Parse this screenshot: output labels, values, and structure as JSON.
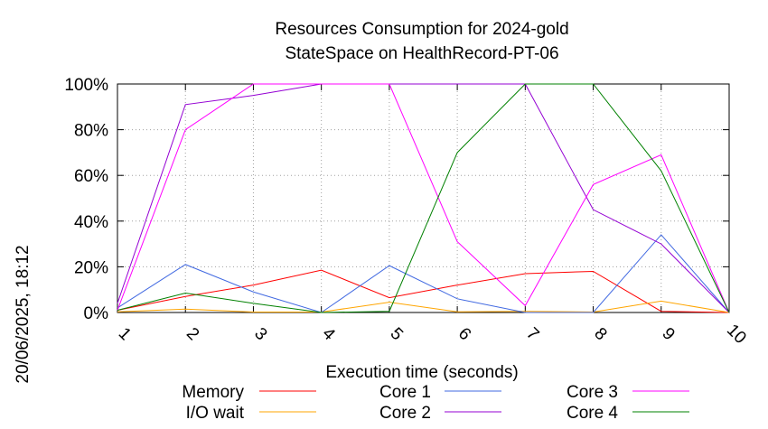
{
  "chart_data": {
    "type": "line",
    "title_line1": "Resources Consumption for 2024-gold",
    "title_line2": "StateSpace on HealthRecord-PT-06",
    "xlabel": "Execution time (seconds)",
    "side_label": "20/06/2025, 18:12",
    "x": [
      1,
      2,
      3,
      4,
      5,
      6,
      7,
      8,
      9,
      10
    ],
    "x_ticks": [
      "1",
      "2",
      "3",
      "4",
      "5",
      "6",
      "7",
      "8",
      "9",
      "10"
    ],
    "xlim": [
      1,
      10
    ],
    "ylim": [
      0,
      100
    ],
    "y_ticks": [
      0,
      20,
      40,
      60,
      80,
      100
    ],
    "y_tick_labels": [
      "0%",
      "20%",
      "40%",
      "60%",
      "80%",
      "100%"
    ],
    "grid": true,
    "legend_position": "bottom",
    "series": [
      {
        "name": "Memory",
        "color": "#ff0000",
        "values": [
          1,
          7,
          12,
          18.5,
          6.5,
          12,
          17,
          18,
          0.5,
          0
        ]
      },
      {
        "name": "I/O wait",
        "color": "#ffa500",
        "values": [
          0.3,
          1.5,
          0.2,
          0.2,
          4.5,
          0.3,
          0.5,
          0.2,
          5,
          0
        ]
      },
      {
        "name": "Core 1",
        "color": "#4169e1",
        "values": [
          2,
          21,
          9,
          0,
          20.5,
          6,
          0,
          0,
          34,
          0
        ]
      },
      {
        "name": "Core 2",
        "color": "#9400d3",
        "values": [
          4,
          91,
          95,
          100,
          100,
          100,
          100,
          45,
          30,
          0
        ]
      },
      {
        "name": "Core 3",
        "color": "#ff00ff",
        "values": [
          1,
          80,
          100,
          100,
          100,
          31,
          3,
          56,
          69,
          0
        ]
      },
      {
        "name": "Core 4",
        "color": "#008000",
        "values": [
          1,
          8.5,
          4,
          0,
          0.5,
          70,
          100,
          100,
          62,
          0
        ]
      }
    ]
  }
}
